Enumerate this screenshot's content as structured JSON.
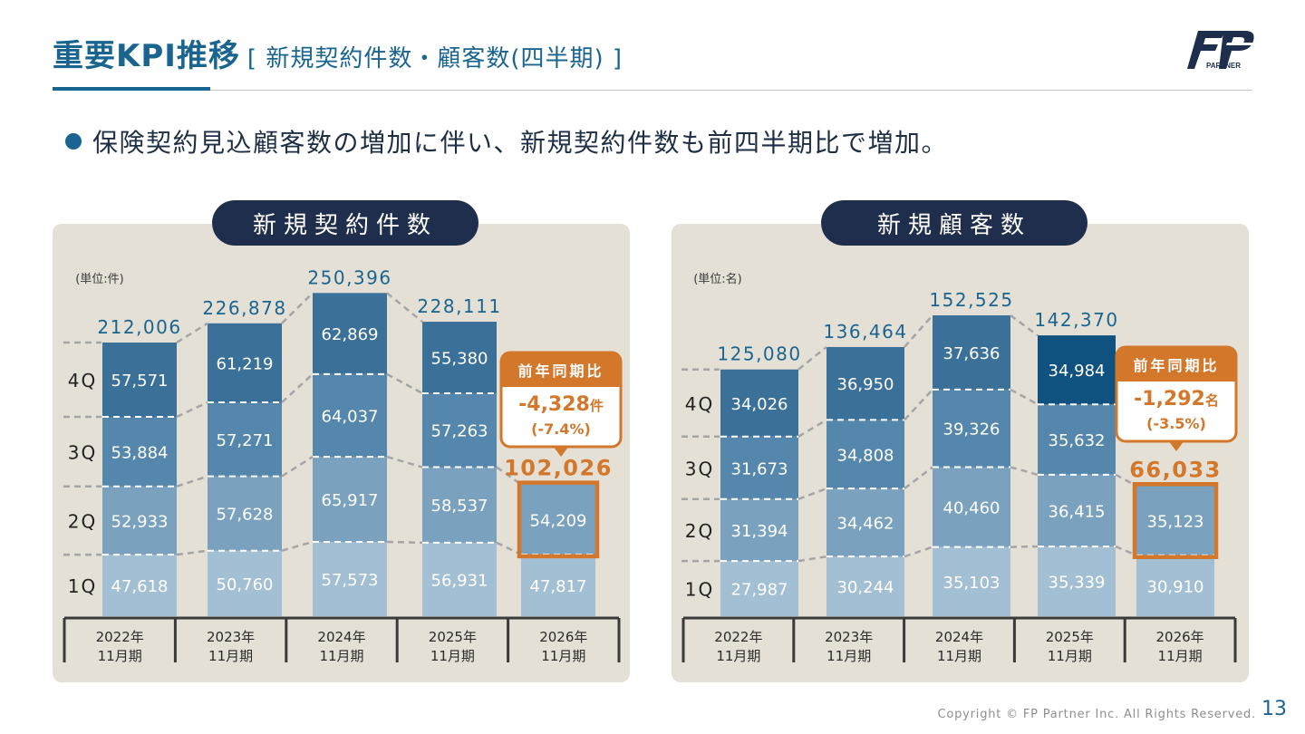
{
  "header": {
    "title_main": "重要KPI推移",
    "title_sub": "[ 新規契約件数・顧客数(四半期) ]",
    "logo_text": "PARTNER",
    "logo_mark": "FP"
  },
  "bullet": "保険契約見込顧客数の増加に伴い、新規契約件数も前四半期比で増加。",
  "footer": {
    "copyright": "Copyright © FP Partner Inc. All Rights Reserved.",
    "page": "13"
  },
  "colors": {
    "q1": "#a3bfd3",
    "q2": "#7aa2bf",
    "q3": "#5487ab",
    "q4": "#3b7099",
    "q4_highlight": "#10527f",
    "accent": "#d3772b",
    "navy": "#1f2e4c",
    "panel": "#e5e0d6"
  },
  "chart_data": [
    {
      "type": "bar",
      "title": "新規契約件数",
      "unit_label": "(単位:件)",
      "categories": [
        "2022年\n11月期",
        "2023年\n11月期",
        "2024年\n11月期",
        "2025年\n11月期",
        "2026年\n11月期"
      ],
      "series": [
        {
          "name": "1Q",
          "values": [
            47618,
            50760,
            57573,
            56931,
            47817
          ]
        },
        {
          "name": "2Q",
          "values": [
            52933,
            57628,
            65917,
            58537,
            54209
          ]
        },
        {
          "name": "3Q",
          "values": [
            53884,
            57271,
            64037,
            57263,
            null
          ]
        },
        {
          "name": "4Q",
          "values": [
            57571,
            61219,
            62869,
            55380,
            null
          ]
        }
      ],
      "totals": [
        212006,
        226878,
        250396,
        228111,
        102026
      ],
      "yoy": {
        "label": "前年同期比",
        "value": "-4,328",
        "unit": "件",
        "pct": "(-7.4%)"
      },
      "highlight_quarter": "2Q"
    },
    {
      "type": "bar",
      "title": "新規顧客数",
      "unit_label": "(単位:名)",
      "categories": [
        "2022年\n11月期",
        "2023年\n11月期",
        "2024年\n11月期",
        "2025年\n11月期",
        "2026年\n11月期"
      ],
      "series": [
        {
          "name": "1Q",
          "values": [
            27987,
            30244,
            35103,
            35339,
            30910
          ]
        },
        {
          "name": "2Q",
          "values": [
            31394,
            34462,
            40460,
            36415,
            35123
          ]
        },
        {
          "name": "3Q",
          "values": [
            31673,
            34808,
            39326,
            35632,
            null
          ]
        },
        {
          "name": "4Q",
          "values": [
            34026,
            36950,
            37636,
            34984,
            null
          ]
        }
      ],
      "totals": [
        125080,
        136464,
        152525,
        142370,
        66033
      ],
      "yoy": {
        "label": "前年同期比",
        "value": "-1,292",
        "unit": "名",
        "pct": "(-3.5%)"
      },
      "highlight_quarter": "2Q"
    }
  ]
}
